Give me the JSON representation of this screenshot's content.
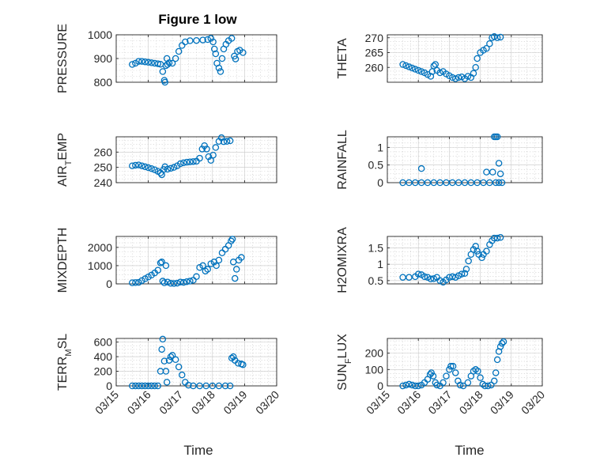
{
  "figure": {
    "title": "Figure 1 low",
    "marker_color": "#0072BD",
    "xlabel_left": "Time",
    "xlabel_right": "Time",
    "x_ticks": [
      "03/15",
      "03/16",
      "03/17",
      "03/18",
      "03/19",
      "03/20"
    ]
  },
  "chart_data": [
    {
      "id": "pressure",
      "type": "scatter",
      "ylabel": "PRESSURE",
      "xlim": [
        15,
        20
      ],
      "ylim": [
        800,
        1000
      ],
      "yticks": [
        800,
        900,
        1000
      ],
      "points": [
        [
          15.5,
          875
        ],
        [
          15.6,
          880
        ],
        [
          15.7,
          888
        ],
        [
          15.8,
          888
        ],
        [
          15.9,
          886
        ],
        [
          16.0,
          884
        ],
        [
          16.1,
          882
        ],
        [
          16.2,
          880
        ],
        [
          16.3,
          878
        ],
        [
          16.38,
          876
        ],
        [
          16.45,
          845
        ],
        [
          16.5,
          808
        ],
        [
          16.52,
          800
        ],
        [
          16.55,
          870
        ],
        [
          16.58,
          900
        ],
        [
          16.6,
          875
        ],
        [
          16.65,
          882
        ],
        [
          16.75,
          880
        ],
        [
          16.85,
          900
        ],
        [
          16.95,
          930
        ],
        [
          17.05,
          955
        ],
        [
          17.15,
          970
        ],
        [
          17.3,
          975
        ],
        [
          17.5,
          976
        ],
        [
          17.7,
          978
        ],
        [
          17.85,
          980
        ],
        [
          17.95,
          985
        ],
        [
          18.02,
          970
        ],
        [
          18.06,
          940
        ],
        [
          18.1,
          920
        ],
        [
          18.14,
          880
        ],
        [
          18.2,
          860
        ],
        [
          18.25,
          845
        ],
        [
          18.3,
          900
        ],
        [
          18.35,
          940
        ],
        [
          18.42,
          960
        ],
        [
          18.5,
          975
        ],
        [
          18.6,
          985
        ],
        [
          18.68,
          910
        ],
        [
          18.72,
          898
        ],
        [
          18.78,
          930
        ],
        [
          18.85,
          935
        ],
        [
          18.95,
          925
        ]
      ]
    },
    {
      "id": "theta",
      "type": "scatter",
      "ylabel": "THETA",
      "xlim": [
        15,
        20
      ],
      "ylim": [
        255,
        271
      ],
      "yticks": [
        260,
        265,
        270
      ],
      "points": [
        [
          15.5,
          261
        ],
        [
          15.6,
          260.6
        ],
        [
          15.7,
          260.2
        ],
        [
          15.8,
          259.8
        ],
        [
          15.9,
          259.4
        ],
        [
          16.0,
          259
        ],
        [
          16.1,
          258.6
        ],
        [
          16.2,
          258.2
        ],
        [
          16.3,
          257.6
        ],
        [
          16.4,
          257
        ],
        [
          16.45,
          258.6
        ],
        [
          16.5,
          260.5
        ],
        [
          16.55,
          261
        ],
        [
          16.6,
          259
        ],
        [
          16.7,
          258.2
        ],
        [
          16.8,
          258.6
        ],
        [
          16.9,
          257.8
        ],
        [
          17.0,
          257.2
        ],
        [
          17.1,
          256.6
        ],
        [
          17.2,
          256.2
        ],
        [
          17.3,
          256.6
        ],
        [
          17.4,
          256.8
        ],
        [
          17.5,
          256.2
        ],
        [
          17.6,
          257
        ],
        [
          17.7,
          256.6
        ],
        [
          17.78,
          258
        ],
        [
          17.85,
          260
        ],
        [
          17.9,
          263
        ],
        [
          18.0,
          265
        ],
        [
          18.1,
          265.8
        ],
        [
          18.2,
          266.4
        ],
        [
          18.3,
          268
        ],
        [
          18.38,
          270
        ],
        [
          18.45,
          270.4
        ],
        [
          18.55,
          270
        ],
        [
          18.65,
          270.2
        ]
      ]
    },
    {
      "id": "air_temp",
      "type": "scatter",
      "ylabel": "AIR_TEMP",
      "xlim": [
        15,
        20
      ],
      "ylim": [
        240,
        270
      ],
      "yticks": [
        240,
        250,
        260
      ],
      "points": [
        [
          15.5,
          251
        ],
        [
          15.6,
          251.4
        ],
        [
          15.7,
          251.6
        ],
        [
          15.8,
          251
        ],
        [
          15.9,
          250.4
        ],
        [
          16.0,
          249.8
        ],
        [
          16.1,
          249.2
        ],
        [
          16.2,
          248.4
        ],
        [
          16.3,
          247.4
        ],
        [
          16.38,
          246.4
        ],
        [
          16.42,
          245.2
        ],
        [
          16.48,
          248.6
        ],
        [
          16.52,
          250.4
        ],
        [
          16.6,
          248.8
        ],
        [
          16.7,
          249.4
        ],
        [
          16.8,
          250
        ],
        [
          16.9,
          251
        ],
        [
          17.0,
          252.4
        ],
        [
          17.1,
          253
        ],
        [
          17.2,
          253.4
        ],
        [
          17.3,
          253.6
        ],
        [
          17.4,
          253.8
        ],
        [
          17.5,
          254
        ],
        [
          17.6,
          256
        ],
        [
          17.68,
          262
        ],
        [
          17.75,
          264.2
        ],
        [
          17.82,
          262
        ],
        [
          17.88,
          257
        ],
        [
          17.95,
          254.6
        ],
        [
          18.02,
          258
        ],
        [
          18.1,
          263
        ],
        [
          18.2,
          267
        ],
        [
          18.28,
          269.4
        ],
        [
          18.35,
          266.8
        ],
        [
          18.45,
          267
        ],
        [
          18.55,
          267.4
        ]
      ]
    },
    {
      "id": "rainfall",
      "type": "scatter",
      "ylabel": "RAINFALL",
      "xlim": [
        15,
        20
      ],
      "ylim": [
        0,
        1.3
      ],
      "yticks": [
        0,
        0.5,
        1
      ],
      "points": [
        [
          15.5,
          0
        ],
        [
          15.7,
          0
        ],
        [
          15.9,
          0
        ],
        [
          16.1,
          0
        ],
        [
          16.3,
          0
        ],
        [
          16.5,
          0
        ],
        [
          16.7,
          0
        ],
        [
          16.9,
          0
        ],
        [
          17.1,
          0
        ],
        [
          17.3,
          0
        ],
        [
          17.5,
          0
        ],
        [
          17.7,
          0
        ],
        [
          17.9,
          0
        ],
        [
          18.1,
          0
        ],
        [
          18.3,
          0
        ],
        [
          18.5,
          0
        ],
        [
          18.6,
          0
        ],
        [
          16.1,
          0.4
        ],
        [
          18.2,
          0.3
        ],
        [
          18.4,
          0.3
        ],
        [
          18.45,
          1.3
        ],
        [
          18.5,
          1.3
        ],
        [
          18.55,
          1.3
        ],
        [
          18.6,
          0.55
        ],
        [
          18.65,
          0.25
        ],
        [
          18.7,
          0
        ]
      ]
    },
    {
      "id": "mixdepth",
      "type": "scatter",
      "ylabel": "MIXDEPTH",
      "xlim": [
        15,
        20
      ],
      "ylim": [
        0,
        2600
      ],
      "yticks": [
        0,
        1000,
        2000
      ],
      "points": [
        [
          15.5,
          60
        ],
        [
          15.6,
          70
        ],
        [
          15.7,
          80
        ],
        [
          15.8,
          180
        ],
        [
          15.9,
          280
        ],
        [
          16.0,
          380
        ],
        [
          16.1,
          480
        ],
        [
          16.2,
          600
        ],
        [
          16.3,
          750
        ],
        [
          16.38,
          1150
        ],
        [
          16.42,
          1200
        ],
        [
          16.45,
          150
        ],
        [
          16.5,
          60
        ],
        [
          16.55,
          1000
        ],
        [
          16.6,
          100
        ],
        [
          16.7,
          30
        ],
        [
          16.8,
          20
        ],
        [
          16.9,
          40
        ],
        [
          17.0,
          100
        ],
        [
          17.1,
          80
        ],
        [
          17.2,
          120
        ],
        [
          17.3,
          150
        ],
        [
          17.4,
          200
        ],
        [
          17.5,
          400
        ],
        [
          17.6,
          900
        ],
        [
          17.7,
          1000
        ],
        [
          17.78,
          700
        ],
        [
          17.85,
          800
        ],
        [
          17.95,
          1100
        ],
        [
          18.05,
          1200
        ],
        [
          18.12,
          1000
        ],
        [
          18.2,
          1300
        ],
        [
          18.3,
          1700
        ],
        [
          18.4,
          1900
        ],
        [
          18.5,
          2100
        ],
        [
          18.58,
          2350
        ],
        [
          18.62,
          2450
        ],
        [
          18.65,
          1200
        ],
        [
          18.7,
          300
        ],
        [
          18.75,
          800
        ],
        [
          18.82,
          1300
        ],
        [
          18.9,
          1450
        ]
      ]
    },
    {
      "id": "h2omixra",
      "type": "scatter",
      "ylabel": "H2OMIXRA",
      "xlim": [
        15,
        20
      ],
      "ylim": [
        0.4,
        1.85
      ],
      "yticks": [
        0.5,
        1,
        1.5
      ],
      "points": [
        [
          15.5,
          0.6
        ],
        [
          15.7,
          0.6
        ],
        [
          15.9,
          0.62
        ],
        [
          16.0,
          0.7
        ],
        [
          16.1,
          0.68
        ],
        [
          16.2,
          0.62
        ],
        [
          16.3,
          0.6
        ],
        [
          16.4,
          0.55
        ],
        [
          16.5,
          0.56
        ],
        [
          16.6,
          0.6
        ],
        [
          16.7,
          0.5
        ],
        [
          16.8,
          0.45
        ],
        [
          16.9,
          0.52
        ],
        [
          17.0,
          0.6
        ],
        [
          17.1,
          0.62
        ],
        [
          17.2,
          0.6
        ],
        [
          17.3,
          0.65
        ],
        [
          17.4,
          0.7
        ],
        [
          17.5,
          0.72
        ],
        [
          17.55,
          0.85
        ],
        [
          17.62,
          1.1
        ],
        [
          17.7,
          1.3
        ],
        [
          17.78,
          1.45
        ],
        [
          17.85,
          1.55
        ],
        [
          17.9,
          1.4
        ],
        [
          17.95,
          1.3
        ],
        [
          18.05,
          1.2
        ],
        [
          18.1,
          1.3
        ],
        [
          18.2,
          1.4
        ],
        [
          18.3,
          1.6
        ],
        [
          18.38,
          1.72
        ],
        [
          18.45,
          1.8
        ],
        [
          18.55,
          1.8
        ],
        [
          18.65,
          1.82
        ]
      ]
    },
    {
      "id": "terr_msl",
      "type": "scatter",
      "ylabel": "TERR_MSL",
      "xlim": [
        15,
        20
      ],
      "ylim": [
        0,
        650
      ],
      "yticks": [
        0,
        200,
        400,
        600
      ],
      "points": [
        [
          15.5,
          0
        ],
        [
          15.6,
          0
        ],
        [
          15.7,
          0
        ],
        [
          15.8,
          0
        ],
        [
          15.9,
          0
        ],
        [
          16.0,
          0
        ],
        [
          16.1,
          0
        ],
        [
          16.2,
          0
        ],
        [
          16.3,
          0
        ],
        [
          16.38,
          200
        ],
        [
          16.42,
          500
        ],
        [
          16.45,
          640
        ],
        [
          16.5,
          340
        ],
        [
          16.55,
          200
        ],
        [
          16.58,
          50
        ],
        [
          16.65,
          350
        ],
        [
          16.7,
          400
        ],
        [
          16.75,
          420
        ],
        [
          16.85,
          360
        ],
        [
          16.95,
          260
        ],
        [
          17.05,
          150
        ],
        [
          17.15,
          50
        ],
        [
          17.25,
          10
        ],
        [
          17.4,
          0
        ],
        [
          17.6,
          0
        ],
        [
          17.8,
          0
        ],
        [
          18.0,
          0
        ],
        [
          18.2,
          0
        ],
        [
          18.4,
          0
        ],
        [
          18.55,
          0
        ],
        [
          18.6,
          380
        ],
        [
          18.65,
          400
        ],
        [
          18.7,
          350
        ],
        [
          18.8,
          310
        ],
        [
          18.9,
          300
        ],
        [
          18.95,
          290
        ]
      ]
    },
    {
      "id": "sun_flux",
      "type": "scatter",
      "ylabel": "SUN_FLUX",
      "xlim": [
        15,
        20
      ],
      "ylim": [
        0,
        290
      ],
      "yticks": [
        0,
        100,
        200
      ],
      "points": [
        [
          15.5,
          0
        ],
        [
          15.6,
          5
        ],
        [
          15.7,
          10
        ],
        [
          15.8,
          5
        ],
        [
          15.9,
          0
        ],
        [
          16.0,
          0
        ],
        [
          16.1,
          5
        ],
        [
          16.2,
          20
        ],
        [
          16.3,
          40
        ],
        [
          16.38,
          70
        ],
        [
          16.42,
          80
        ],
        [
          16.48,
          60
        ],
        [
          16.55,
          20
        ],
        [
          16.6,
          5
        ],
        [
          16.7,
          0
        ],
        [
          16.8,
          20
        ],
        [
          16.9,
          60
        ],
        [
          17.0,
          100
        ],
        [
          17.05,
          120
        ],
        [
          17.12,
          120
        ],
        [
          17.2,
          80
        ],
        [
          17.28,
          30
        ],
        [
          17.35,
          5
        ],
        [
          17.45,
          0
        ],
        [
          17.6,
          20
        ],
        [
          17.7,
          60
        ],
        [
          17.78,
          90
        ],
        [
          17.85,
          100
        ],
        [
          17.92,
          90
        ],
        [
          18.0,
          50
        ],
        [
          18.08,
          10
        ],
        [
          18.15,
          0
        ],
        [
          18.25,
          0
        ],
        [
          18.35,
          5
        ],
        [
          18.45,
          30
        ],
        [
          18.5,
          80
        ],
        [
          18.55,
          160
        ],
        [
          18.6,
          210
        ],
        [
          18.65,
          240
        ],
        [
          18.7,
          260
        ],
        [
          18.75,
          270
        ]
      ]
    }
  ]
}
